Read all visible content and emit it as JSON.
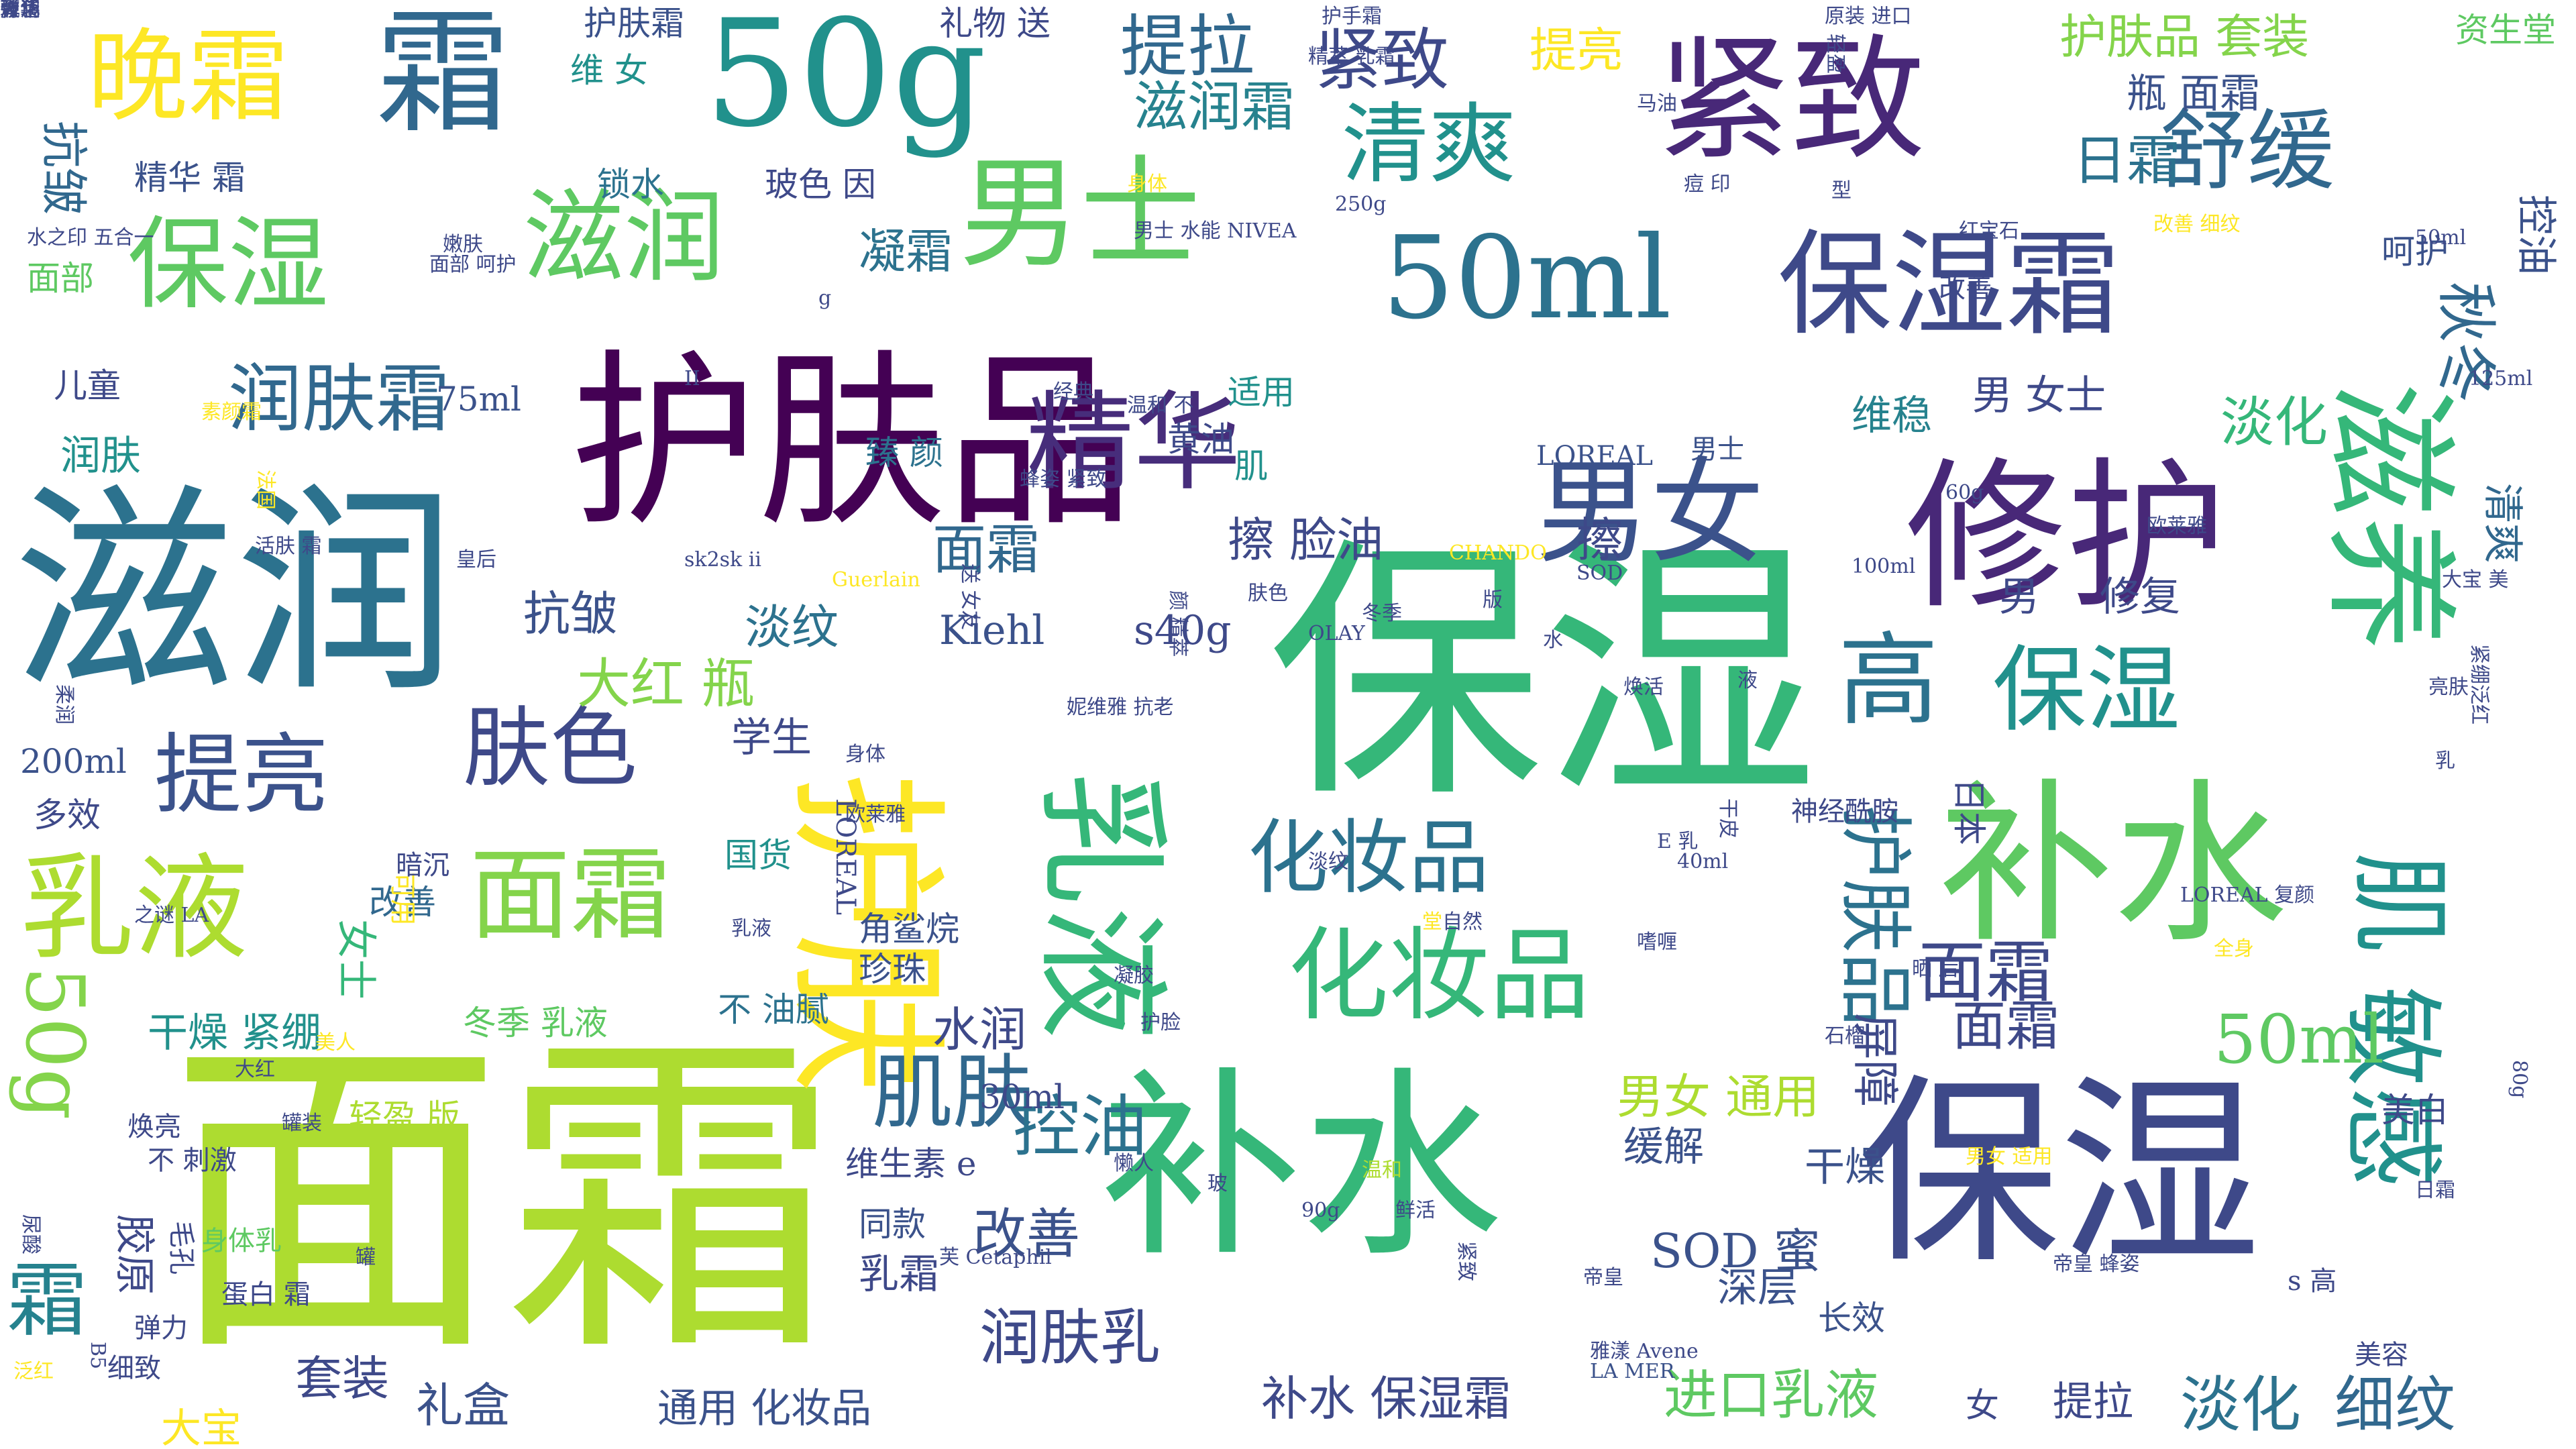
{
  "words": [
    {
      "text": "面霜",
      "color": "#addc30"
    },
    {
      "text": "保湿",
      "color": "#35b779"
    },
    {
      "text": "滋润",
      "color": "#2c728e"
    },
    {
      "text": "补水",
      "color": "#35b779"
    },
    {
      "text": "保湿",
      "color": "#3e4989"
    },
    {
      "text": "护肤品",
      "color": "#440154"
    },
    {
      "text": "护肤",
      "color": "#fde725"
    },
    {
      "text": "修护",
      "color": "#482878"
    },
    {
      "text": "补水",
      "color": "#5ec962"
    },
    {
      "text": "紧致",
      "color": "#482878"
    },
    {
      "text": "50g",
      "color": "#21918c"
    },
    {
      "text": "霜",
      "color": "#31688e"
    },
    {
      "text": "保湿霜",
      "color": "#3e4989"
    },
    {
      "text": "50ml",
      "color": "#2c728e"
    },
    {
      "text": "男士",
      "color": "#5ec962"
    },
    {
      "text": "精华",
      "color": "#472d7b"
    },
    {
      "text": "男女",
      "color": "#3b528b"
    },
    {
      "text": "保湿",
      "color": "#5ec962"
    },
    {
      "text": "滋润",
      "color": "#5ec962"
    },
    {
      "text": "滋养",
      "color": "#35b779"
    },
    {
      "text": "面霜",
      "color": "#84d44b"
    },
    {
      "text": "乳液",
      "color": "#addc30"
    },
    {
      "text": "化妆品",
      "color": "#35b779"
    },
    {
      "text": "乳液",
      "color": "#35b779"
    },
    {
      "text": "肌",
      "color": "#21918c"
    },
    {
      "text": "敏感",
      "color": "#21918c"
    },
    {
      "text": "晚霜",
      "color": "#fde725"
    },
    {
      "text": "清爽",
      "color": "#21918c"
    },
    {
      "text": "舒缓",
      "color": "#31688e"
    },
    {
      "text": "润肤霜",
      "color": "#31688e"
    },
    {
      "text": "提亮",
      "color": "#3b528b"
    },
    {
      "text": "肤色",
      "color": "#3e4989"
    },
    {
      "text": "高",
      "color": "#2c728e"
    },
    {
      "text": "保湿",
      "color": "#21918c"
    },
    {
      "text": "50g",
      "color": "#84d44b"
    },
    {
      "text": "霜",
      "color": "#26828e"
    },
    {
      "text": "护肤品",
      "color": "#2c728e"
    },
    {
      "text": "化妆品",
      "color": "#2c728e"
    },
    {
      "text": "面霜",
      "color": "#3e4989"
    },
    {
      "text": "50ml",
      "color": "#5ec962"
    },
    {
      "text": "肌肤",
      "color": "#31688e"
    },
    {
      "text": "控油",
      "color": "#2c728e"
    },
    {
      "text": "提拉",
      "color": "#31688e"
    },
    {
      "text": "紧致",
      "color": "#3e4989"
    },
    {
      "text": "提亮",
      "color": "#fde725"
    },
    {
      "text": "护肤品 套装",
      "color": "#84d44b"
    },
    {
      "text": "资生堂",
      "color": "#5ec962"
    },
    {
      "text": "瓶 面霜",
      "color": "#3b528b"
    },
    {
      "text": "日霜",
      "color": "#2c728e"
    },
    {
      "text": "滋润霜",
      "color": "#26828e"
    },
    {
      "text": "礼物 送",
      "color": "#3e4989"
    },
    {
      "text": "抗皱",
      "color": "#31688e"
    },
    {
      "text": "精华 霜",
      "color": "#3b528b"
    },
    {
      "text": "锁水",
      "color": "#2c728e"
    },
    {
      "text": "玻色 因",
      "color": "#3e4989"
    },
    {
      "text": "凝霜",
      "color": "#2c728e"
    },
    {
      "text": "护肤霜",
      "color": "#3b528b"
    },
    {
      "text": "维 女",
      "color": "#21918c"
    },
    {
      "text": "秋冬",
      "color": "#31688e"
    },
    {
      "text": "控油",
      "color": "#3b528b"
    },
    {
      "text": "清爽",
      "color": "#31688e"
    },
    {
      "text": "呵护",
      "color": "#3b528b"
    },
    {
      "text": "淡化",
      "color": "#35b779"
    },
    {
      "text": "维稳",
      "color": "#26828e"
    },
    {
      "text": "男 女士",
      "color": "#3e4989"
    },
    {
      "text": "擦 脸油",
      "color": "#3e4989"
    },
    {
      "text": "擦",
      "color": "#3e4989"
    },
    {
      "text": "抗皱",
      "color": "#3b528b"
    },
    {
      "text": "淡纹",
      "color": "#2c728e"
    },
    {
      "text": "大红 瓶",
      "color": "#84d44b"
    },
    {
      "text": "面霜",
      "color": "#31688e"
    },
    {
      "text": "Kiehl",
      "color": "#3b528b"
    },
    {
      "text": "s40g",
      "color": "#3e4989"
    },
    {
      "text": "修复",
      "color": "#3e4989"
    },
    {
      "text": "男",
      "color": "#3e4989"
    },
    {
      "text": "学生",
      "color": "#3e4989"
    },
    {
      "text": "200ml",
      "color": "#3b528b"
    },
    {
      "text": "多效",
      "color": "#3e4989"
    },
    {
      "text": "儿童",
      "color": "#3e4989"
    },
    {
      "text": "润肤",
      "color": "#21918c"
    },
    {
      "text": "面部",
      "color": "#5ec962"
    },
    {
      "text": "75ml",
      "color": "#3b528b"
    },
    {
      "text": "黄油",
      "color": "#3e4989"
    },
    {
      "text": "臻 颜",
      "color": "#2c728e"
    },
    {
      "text": "适用",
      "color": "#21918c"
    },
    {
      "text": "肌",
      "color": "#21918c"
    },
    {
      "text": "LOREAL",
      "color": "#3b528b"
    },
    {
      "text": "男士",
      "color": "#3b528b"
    },
    {
      "text": "女士",
      "color": "#35b779"
    },
    {
      "text": "改善",
      "color": "#31688e"
    },
    {
      "text": "国货",
      "color": "#21918c"
    },
    {
      "text": "角鲨烷",
      "color": "#3b528b"
    },
    {
      "text": "珍珠",
      "color": "#3b528b"
    },
    {
      "text": "不 油腻",
      "color": "#2c728e"
    },
    {
      "text": "水润",
      "color": "#3e4989"
    },
    {
      "text": "干燥 紧绷",
      "color": "#21918c"
    },
    {
      "text": "冬季 乳液",
      "color": "#5ec962"
    },
    {
      "text": "轻盈 版",
      "color": "#addc30"
    },
    {
      "text": "30ml",
      "color": "#3e4989"
    },
    {
      "text": "男女 通用",
      "color": "#addc30"
    },
    {
      "text": "缓解",
      "color": "#3b528b"
    },
    {
      "text": "干燥",
      "color": "#3b528b"
    },
    {
      "text": "SOD 蜜",
      "color": "#3b528b"
    },
    {
      "text": "深层",
      "color": "#3b528b"
    },
    {
      "text": "长效",
      "color": "#3b528b"
    },
    {
      "text": "改善",
      "color": "#3b528b"
    },
    {
      "text": "润肤乳",
      "color": "#3e4989"
    },
    {
      "text": "乳霜",
      "color": "#3e4989"
    },
    {
      "text": "同款",
      "color": "#3b528b"
    },
    {
      "text": "补水 保湿霜",
      "color": "#3e4989"
    },
    {
      "text": "进口乳液",
      "color": "#5ec962"
    },
    {
      "text": "套装",
      "color": "#3e4989"
    },
    {
      "text": "礼盒",
      "color": "#3b528b"
    },
    {
      "text": "通用 化妆品",
      "color": "#3b528b"
    },
    {
      "text": "女",
      "color": "#3e4989"
    },
    {
      "text": "提拉",
      "color": "#3e4989"
    },
    {
      "text": "淡化",
      "color": "#2c728e"
    },
    {
      "text": "细纹",
      "color": "#31688e"
    },
    {
      "text": "大宝",
      "color": "#fde725"
    },
    {
      "text": "美白",
      "color": "#3e4989"
    },
    {
      "text": "屏障",
      "color": "#3e4989"
    },
    {
      "text": "面霜",
      "color": "#3e4989"
    },
    {
      "text": "日本",
      "color": "#3e4989"
    },
    {
      "text": "神经酰胺",
      "color": "#3e4989"
    },
    {
      "text": "焕亮",
      "color": "#3e4989"
    },
    {
      "text": "不 刺激",
      "color": "#3e4989"
    },
    {
      "text": "胶原",
      "color": "#3e4989"
    },
    {
      "text": "毛孔",
      "color": "#3e4989"
    },
    {
      "text": "身体乳",
      "color": "#5ec962"
    },
    {
      "text": "蛋白 霜",
      "color": "#3e4989"
    },
    {
      "text": "弹力",
      "color": "#3e4989"
    },
    {
      "text": "细致",
      "color": "#3e4989"
    },
    {
      "text": "维生素 e",
      "color": "#3e4989"
    },
    {
      "text": "懒人",
      "color": "#3e4989"
    },
    {
      "text": "鲜活",
      "color": "#3e4989"
    },
    {
      "text": "温和",
      "color": "#addc30"
    },
    {
      "text": "芙 Cetaphil",
      "color": "#3e4989"
    },
    {
      "text": "雅漾 Avene",
      "color": "#3e4989"
    },
    {
      "text": "LA MER",
      "color": "#3b528b"
    },
    {
      "text": "LOREAL 复颜",
      "color": "#3e4989"
    },
    {
      "text": "全身",
      "color": "#fde725"
    },
    {
      "text": "嗜喱",
      "color": "#3e4989"
    },
    {
      "text": "自然",
      "color": "#3e4989"
    },
    {
      "text": "40ml",
      "color": "#3e4989"
    },
    {
      "text": "干皮",
      "color": "#3e4989"
    },
    {
      "text": "欧莱雅",
      "color": "#3e4989"
    },
    {
      "text": "LOREAL",
      "color": "#3e4989"
    },
    {
      "text": "可用",
      "color": "#fde725"
    },
    {
      "text": "暗沉",
      "color": "#3e4989"
    },
    {
      "text": "改善",
      "color": "#3e4989"
    },
    {
      "text": "50ml",
      "color": "#3e4989"
    },
    {
      "text": "125ml",
      "color": "#3e4989"
    },
    {
      "text": "60g",
      "color": "#3e4989"
    },
    {
      "text": "CHANDO",
      "color": "#fde725"
    },
    {
      "text": "SOD",
      "color": "#3e4989"
    },
    {
      "text": "冬季",
      "color": "#3e4989"
    },
    {
      "text": "100ml",
      "color": "#3e4989"
    },
    {
      "text": "欧莱雅",
      "color": "#3e4989"
    },
    {
      "text": "护手霜",
      "color": "#3e4989"
    },
    {
      "text": "原装 进口",
      "color": "#3e4989"
    },
    {
      "text": "精萃 乳霜",
      "color": "#3e4989"
    },
    {
      "text": "身体",
      "color": "#fde725"
    },
    {
      "text": "250g",
      "color": "#3e4989"
    },
    {
      "text": "改善 细纹",
      "color": "#fde725"
    },
    {
      "text": "红宝石",
      "color": "#3e4989"
    },
    {
      "text": "马油",
      "color": "#3e4989"
    },
    {
      "text": "嫩肤",
      "color": "#3e4989"
    },
    {
      "text": "蜂姿 紧致",
      "color": "#3e4989"
    },
    {
      "text": "素颜霜",
      "color": "#fde725"
    },
    {
      "text": "水之印 五合一",
      "color": "#3e4989"
    },
    {
      "text": "法国",
      "color": "#fde725"
    },
    {
      "text": "活肤 霜",
      "color": "#3e4989"
    },
    {
      "text": "皇后",
      "color": "#3e4989"
    },
    {
      "text": "sk2sk ii",
      "color": "#3e4989"
    },
    {
      "text": "Guerlain",
      "color": "#fde725"
    },
    {
      "text": "送 女友",
      "color": "#3e4989"
    },
    {
      "text": "温和 不",
      "color": "#3e4989"
    },
    {
      "text": "肤色",
      "color": "#3e4989"
    },
    {
      "text": "颜 精萃",
      "color": "#3e4989"
    },
    {
      "text": "OLAY",
      "color": "#3e4989"
    },
    {
      "text": "之谜 LA",
      "color": "#3e4989"
    },
    {
      "text": "美人",
      "color": "#fde725"
    },
    {
      "text": "罐装",
      "color": "#3e4989"
    },
    {
      "text": "石榴",
      "color": "#3e4989"
    },
    {
      "text": "晒 后",
      "color": "#3e4989"
    },
    {
      "text": "男女 适用",
      "color": "#fde725"
    },
    {
      "text": "帝皇 蜂姿",
      "color": "#3e4989"
    },
    {
      "text": "s 高",
      "color": "#3e4989"
    },
    {
      "text": "美容",
      "color": "#3e4989"
    },
    {
      "text": "日霜",
      "color": "#3e4989"
    },
    {
      "text": "80g",
      "color": "#3e4989"
    },
    {
      "text": "泛红",
      "color": "#fde725"
    },
    {
      "text": "B5",
      "color": "#3e4989"
    },
    {
      "text": "亮肤",
      "color": "#3e4989"
    },
    {
      "text": "紧绷泛红",
      "color": "#3e4989"
    },
    {
      "text": "大宝 美",
      "color": "#3e4989"
    },
    {
      "text": "堂",
      "color": "#fde725"
    },
    {
      "text": "版",
      "color": "#3e4989"
    },
    {
      "text": "乳",
      "color": "#3e4989"
    },
    {
      "text": "尿酸",
      "color": "#3e4989"
    },
    {
      "text": "乳液",
      "color": "#3e4989"
    },
    {
      "text": "身体",
      "color": "#3e4989"
    },
    {
      "text": "面部 呵护",
      "color": "#3e4989"
    },
    {
      "text": "型",
      "color": "#3e4989"
    },
    {
      "text": "柔润",
      "color": "#3e4989"
    },
    {
      "text": "g",
      "color": "#3e4989"
    },
    {
      "text": "II",
      "color": "#3e4989"
    },
    {
      "text": "水",
      "color": "#3e4989"
    },
    {
      "text": "液",
      "color": "#3e4989"
    },
    {
      "text": "E 乳",
      "color": "#3e4989"
    },
    {
      "text": "淡纹",
      "color": "#3e4989"
    },
    {
      "text": "凝胶",
      "color": "#3e4989"
    },
    {
      "text": "护脸",
      "color": "#3e4989"
    },
    {
      "text": "玻",
      "color": "#3e4989"
    },
    {
      "text": "90g",
      "color": "#3e4989"
    },
    {
      "text": "痘 印",
      "color": "#3e4989"
    },
    {
      "text": "轻盈",
      "color": "#3e4989"
    },
    {
      "text": "男士 水能 NIVEA",
      "color": "#3e4989"
    },
    {
      "text": "妮维雅 抗老",
      "color": "#3e4989"
    },
    {
      "text": "焕活",
      "color": "#3e4989"
    },
    {
      "text": "经典",
      "color": "#3e4989"
    },
    {
      "text": "大红",
      "color": "#3e4989"
    },
    {
      "text": "紧致",
      "color": "#3e4989"
    },
    {
      "text": "帝皇",
      "color": "#3e4989"
    },
    {
      "text": "罐",
      "color": "#3e4989"
    },
    {
      "text": "瓶装",
      "color": "#3e4989"
    },
    {
      "text": "青华",
      "color": "#3e4989"
    },
    {
      "text": "弹润",
      "color": "#3e4989"
    },
    {
      "text": "玻色",
      "color": "#3e4989"
    }
  ]
}
